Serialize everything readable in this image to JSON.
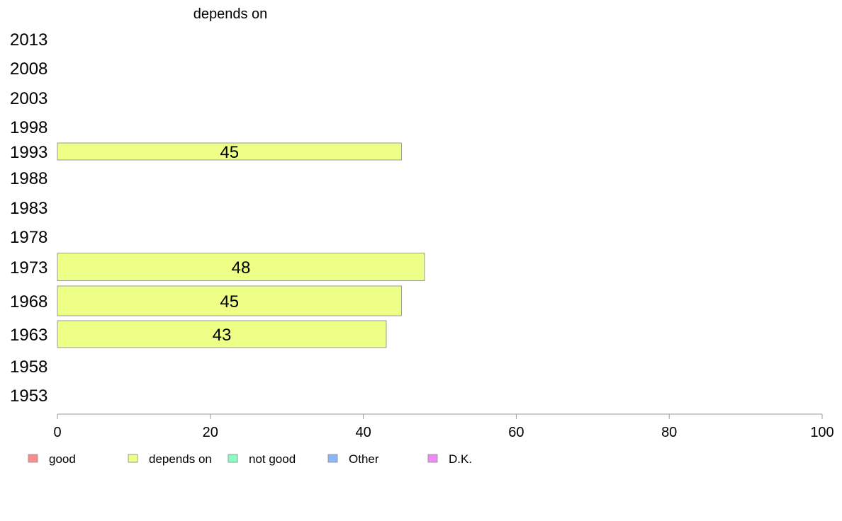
{
  "chart_data": {
    "type": "bar",
    "orientation": "horizontal",
    "title": "depends on",
    "categories": [
      "2013",
      "2008",
      "2003",
      "1998",
      "1993",
      "1988",
      "1983",
      "1978",
      "1973",
      "1968",
      "1963",
      "1958",
      "1953"
    ],
    "series": [
      {
        "name": "depends on",
        "color": "#EEFF88",
        "values": [
          null,
          null,
          null,
          null,
          45,
          null,
          null,
          null,
          48,
          45,
          43,
          null,
          null
        ]
      }
    ],
    "xlim": [
      0,
      100
    ],
    "xticks": [
      0,
      20,
      40,
      60,
      80,
      100
    ],
    "grid": false,
    "legend_placement": "bottom",
    "legend": [
      {
        "label": "good",
        "color": "#FF8A8A"
      },
      {
        "label": "depends on",
        "color": "#EEFF88"
      },
      {
        "label": "not good",
        "color": "#88FFC0"
      },
      {
        "label": "Other",
        "color": "#88B8F8"
      },
      {
        "label": "D.K.",
        "color": "#F088F8"
      }
    ]
  }
}
